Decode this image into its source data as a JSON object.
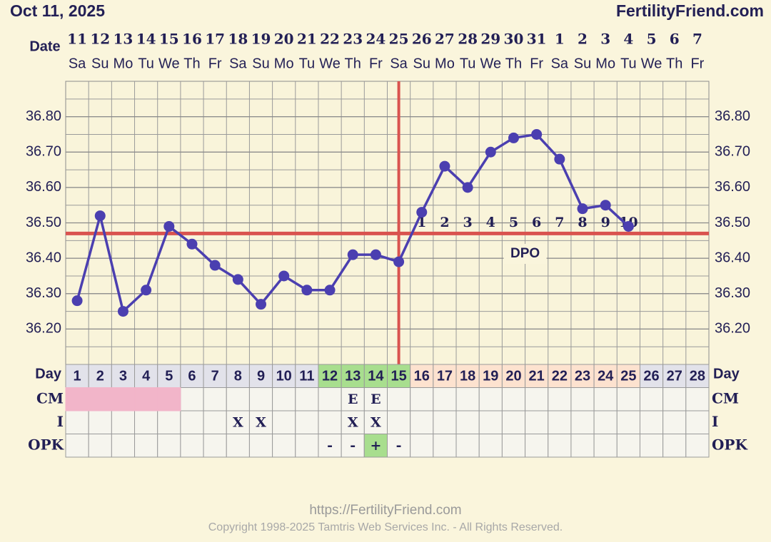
{
  "chart_data": {
    "type": "line",
    "title": "Oct 11, 2025",
    "brand": "FertilityFriend.com",
    "date_label": "Date",
    "dates": [
      "11",
      "12",
      "13",
      "14",
      "15",
      "16",
      "17",
      "18",
      "19",
      "20",
      "21",
      "22",
      "23",
      "24",
      "25",
      "26",
      "27",
      "28",
      "29",
      "30",
      "31",
      "1",
      "2",
      "3",
      "4",
      "5",
      "6",
      "7"
    ],
    "weekdays": [
      "Sa",
      "Su",
      "Mo",
      "Tu",
      "We",
      "Th",
      "Fr",
      "Sa",
      "Su",
      "Mo",
      "Tu",
      "We",
      "Th",
      "Fr",
      "Sa",
      "Su",
      "Mo",
      "Tu",
      "We",
      "Th",
      "Fr",
      "Sa",
      "Su",
      "Mo",
      "Tu",
      "We",
      "Th",
      "Fr"
    ],
    "day_label": "Day",
    "x": [
      1,
      2,
      3,
      4,
      5,
      6,
      7,
      8,
      9,
      10,
      11,
      12,
      13,
      14,
      15,
      16,
      17,
      18,
      19,
      20,
      21,
      22,
      23,
      24,
      25,
      26,
      27,
      28
    ],
    "series": [
      {
        "name": "Temperature",
        "color": "#4b3fb0",
        "values": [
          36.28,
          36.52,
          36.25,
          36.31,
          36.49,
          36.44,
          36.38,
          36.34,
          36.27,
          36.35,
          36.31,
          36.31,
          36.41,
          36.41,
          36.39,
          36.53,
          36.66,
          36.6,
          36.7,
          36.74,
          36.75,
          36.68,
          36.54,
          36.55,
          36.49,
          null,
          null,
          null
        ]
      }
    ],
    "ylim": [
      36.1,
      36.9
    ],
    "yticks": [
      {
        "value": 36.2,
        "label": "36.20"
      },
      {
        "value": 36.3,
        "label": "36.30"
      },
      {
        "value": 36.4,
        "label": "36.40"
      },
      {
        "value": 36.5,
        "label": "36.50"
      },
      {
        "value": 36.6,
        "label": "36.60"
      },
      {
        "value": 36.7,
        "label": "36.70"
      },
      {
        "value": 36.8,
        "label": "36.80"
      }
    ],
    "grid": true,
    "coverline": 36.47,
    "ovulation_day": 15,
    "line_color": "#d9534f",
    "dpo": [
      1,
      2,
      3,
      4,
      5,
      6,
      7,
      8,
      9,
      10
    ],
    "dpo_label": "DPO",
    "period_days": [
      1,
      2,
      3,
      4,
      5
    ],
    "period_color": "#f2b5c9",
    "fertile_days": [
      12,
      13,
      14,
      15
    ],
    "fertile_color": "#a8de8e",
    "luteal_color": "#fde2cf",
    "day_color": "#e2e2ea",
    "rows": [
      {
        "label": "CM",
        "values": [
          null,
          null,
          null,
          null,
          null,
          null,
          null,
          null,
          null,
          null,
          null,
          null,
          "E",
          "E",
          null,
          null,
          null,
          null,
          null,
          null,
          null,
          null,
          null,
          null,
          null,
          null,
          null,
          null
        ]
      },
      {
        "label": "I",
        "values": [
          null,
          null,
          null,
          null,
          null,
          null,
          null,
          "X",
          "X",
          null,
          null,
          null,
          "X",
          "X",
          null,
          null,
          null,
          null,
          null,
          null,
          null,
          null,
          null,
          null,
          null,
          null,
          null,
          null
        ]
      },
      {
        "label": "OPK",
        "values": [
          null,
          null,
          null,
          null,
          null,
          null,
          null,
          null,
          null,
          null,
          null,
          "-",
          "-",
          "+",
          "-",
          null,
          null,
          null,
          null,
          null,
          null,
          null,
          null,
          null,
          null,
          null,
          null,
          null
        ],
        "highlight_days": [
          14
        ]
      }
    ],
    "url": "https://FertilityFriend.com",
    "copyright": "Copyright 1998-2025 Tamtris Web Services Inc. - All Rights Reserved."
  }
}
